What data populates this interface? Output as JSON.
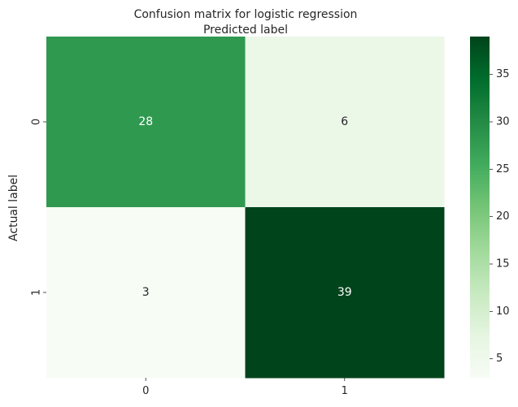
{
  "chart_data": {
    "type": "heatmap",
    "title": "Confusion matrix for logistic regression",
    "xlabel": "Predicted label",
    "ylabel": "Actual label",
    "x_categories": [
      "0",
      "1"
    ],
    "y_categories": [
      "0",
      "1"
    ],
    "values": [
      [
        28,
        6
      ],
      [
        3,
        39
      ]
    ],
    "colormap": "Greens",
    "color_range": [
      3,
      39
    ],
    "colorbar_ticks": [
      5,
      10,
      15,
      20,
      25,
      30,
      35
    ],
    "annotation_colors": {
      "light": "#ffffff",
      "dark": "#262626"
    }
  }
}
